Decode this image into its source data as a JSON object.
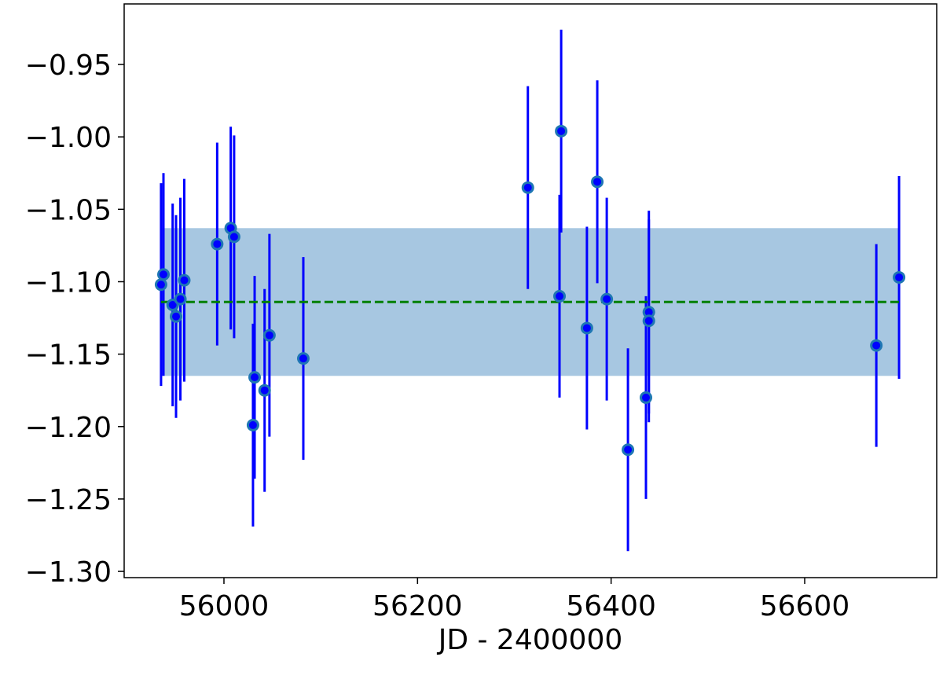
{
  "chart_data": {
    "type": "errorbar",
    "x_label": "JD - 2400000",
    "xlim": [
      55896.9,
      56736.4
    ],
    "ylim": [
      -1.3043,
      -0.9082
    ],
    "xticks": [
      56000,
      56200,
      56400,
      56600
    ],
    "yticks": [
      {
        "value": -0.95,
        "label": "−0.95"
      },
      {
        "value": -1.0,
        "label": "−1.00"
      },
      {
        "value": -1.05,
        "label": "−1.05"
      },
      {
        "value": -1.1,
        "label": "−1.10"
      },
      {
        "value": -1.15,
        "label": "−1.15"
      },
      {
        "value": -1.2,
        "label": "−1.20"
      },
      {
        "value": -1.25,
        "label": "−1.25"
      },
      {
        "value": -1.3,
        "label": "−1.30"
      }
    ],
    "mean": -1.114,
    "mean_color": "#008000",
    "band": [
      -1.165,
      -1.063
    ],
    "band_color": "#a7c7e1",
    "series": [
      {
        "color": "#0000ff",
        "edge_color": "#1f77b4",
        "x": [
          55935,
          55937.5,
          55947,
          55950.5,
          55955,
          55959,
          55993,
          56007,
          56010.5,
          56030,
          56031.7,
          56042,
          56047,
          56082,
          56314,
          56346.7,
          56348.4,
          56375,
          56385.7,
          56395.5,
          56417.4,
          56436,
          56439,
          56439,
          56674,
          56697.5
        ],
        "values": [
          -1.102,
          -1.095,
          -1.116,
          -1.124,
          -1.112,
          -1.099,
          -1.074,
          -1.063,
          -1.069,
          -1.199,
          -1.166,
          -1.175,
          -1.137,
          -1.153,
          -1.035,
          -1.11,
          -0.996,
          -1.132,
          -1.031,
          -1.112,
          -1.216,
          -1.18,
          -1.121,
          -1.127,
          -1.144,
          -1.097
        ],
        "errors": [
          0.07,
          0.07,
          0.07,
          0.07,
          0.07,
          0.07,
          0.07,
          0.07,
          0.07,
          0.07,
          0.07,
          0.07,
          0.07,
          0.07,
          0.07,
          0.07,
          0.07,
          0.07,
          0.07,
          0.07,
          0.07,
          0.07,
          0.07,
          0.07,
          0.07,
          0.07
        ]
      }
    ]
  }
}
